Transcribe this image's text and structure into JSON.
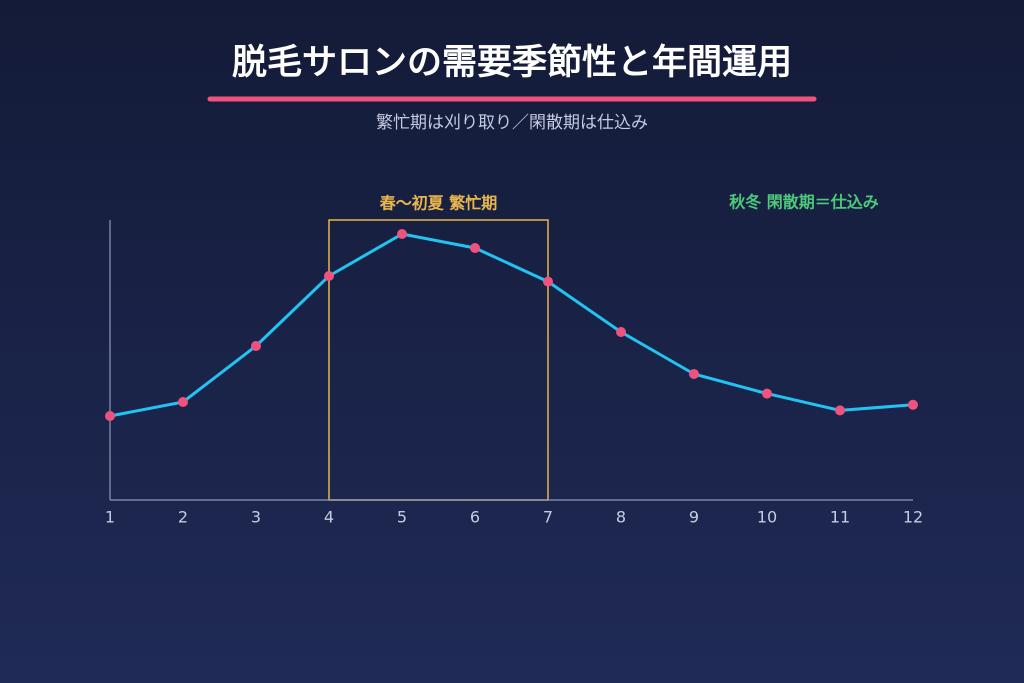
{
  "chart_data": {
    "type": "line",
    "title": "脱毛サロンの需要季節性と年間運用",
    "subtitle": "繁忙期は刈り取り／閑散期は仕込み",
    "x": [
      1,
      2,
      3,
      4,
      5,
      6,
      7,
      8,
      9,
      10,
      11,
      12
    ],
    "xlim": [
      1,
      12
    ],
    "xticks": [
      1,
      2,
      3,
      4,
      5,
      6,
      7,
      8,
      9,
      10,
      11,
      12
    ],
    "values": [
      30,
      35,
      55,
      80,
      95,
      90,
      78,
      60,
      45,
      38,
      32,
      34
    ],
    "ylim": [
      0,
      100
    ],
    "color": "#22c3f0",
    "marker_color": "#f0527f",
    "highlight": {
      "x_range": [
        4,
        7
      ],
      "label": "春〜初夏 繁忙期",
      "color": "#e8b64c"
    },
    "annotations": [
      {
        "text": "秋冬 閑散期＝仕込み",
        "color": "#4cc97a"
      }
    ]
  }
}
